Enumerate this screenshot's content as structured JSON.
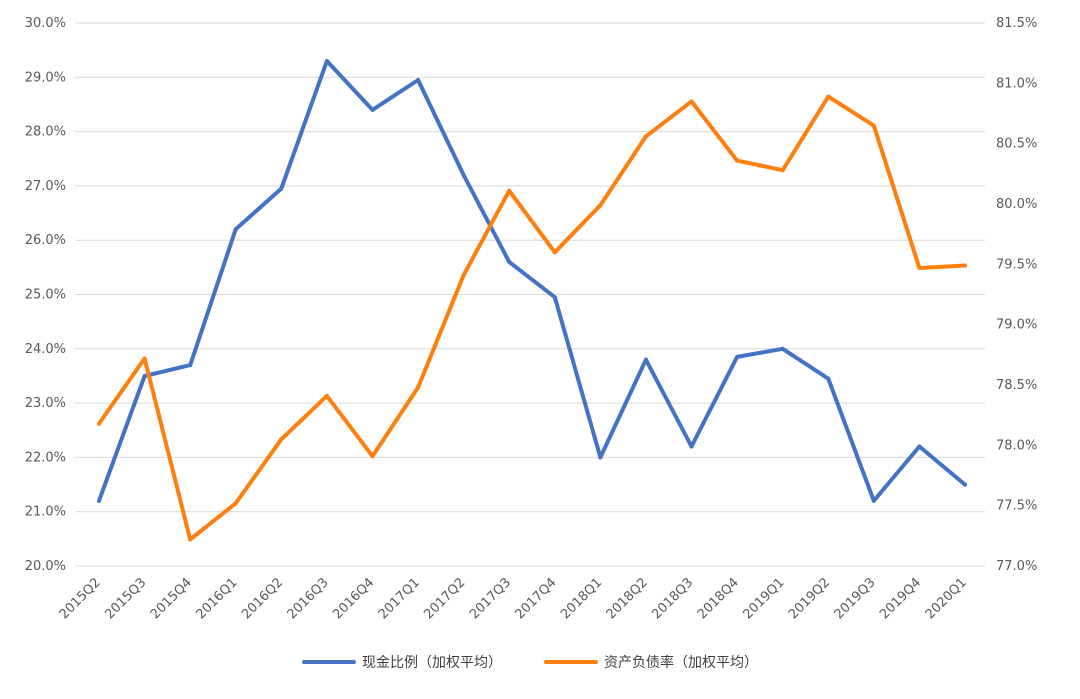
{
  "chart_data": {
    "type": "line",
    "title": "",
    "xlabel": "",
    "ylabel": "",
    "categories": [
      "2015Q2",
      "2015Q3",
      "2015Q4",
      "2016Q1",
      "2016Q2",
      "2016Q3",
      "2016Q4",
      "2017Q1",
      "2017Q2",
      "2017Q3",
      "2017Q4",
      "2018Q1",
      "2018Q2",
      "2018Q3",
      "2018Q4",
      "2019Q1",
      "2019Q2",
      "2019Q3",
      "2019Q4",
      "2020Q1"
    ],
    "ylim_left": [
      20.0,
      30.0
    ],
    "ylim_right": [
      77.0,
      81.5
    ],
    "y_ticks_left": [
      "20.0%",
      "21.0%",
      "22.0%",
      "23.0%",
      "24.0%",
      "25.0%",
      "26.0%",
      "27.0%",
      "28.0%",
      "29.0%",
      "30.0%"
    ],
    "y_ticks_right": [
      "77.0%",
      "77.5%",
      "78.0%",
      "78.5%",
      "79.0%",
      "79.5%",
      "80.0%",
      "80.5%",
      "81.0%",
      "81.5%"
    ],
    "grid": true,
    "legend_position": "bottom-center",
    "series": [
      {
        "name": "现金比例（加权平均）",
        "axis": "left",
        "color": "#4472C4",
        "values": [
          21.2,
          23.5,
          23.7,
          26.2,
          26.95,
          29.3,
          28.4,
          28.95,
          27.2,
          25.6,
          24.95,
          22.0,
          23.8,
          22.2,
          23.85,
          24.0,
          23.45,
          21.2,
          22.2,
          21.5
        ]
      },
      {
        "name": "资产负债率（加权平均）",
        "axis": "right",
        "color": "#FF7F0E",
        "values": [
          78.18,
          78.72,
          77.22,
          77.52,
          78.05,
          78.41,
          77.91,
          78.48,
          79.41,
          80.11,
          79.6,
          79.99,
          80.56,
          80.85,
          80.36,
          80.28,
          80.89,
          80.65,
          79.47,
          79.49
        ]
      }
    ]
  }
}
